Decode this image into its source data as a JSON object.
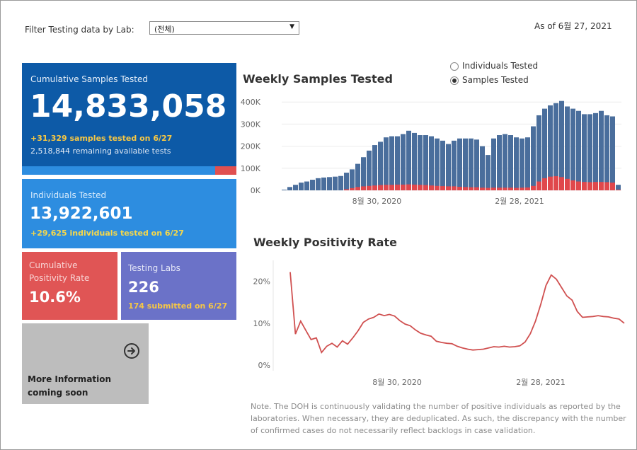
{
  "filter": {
    "label": "Filter Testing data by Lab:",
    "value": "(전체)"
  },
  "as_of": "As of 6월 27, 2021",
  "cumulative": {
    "title": "Cumulative Samples Tested",
    "value": "14,833,058",
    "added": "+31,329 samples tested on 6/27",
    "remaining": "2,518,844 remaining available tests",
    "used_fraction": 0.9
  },
  "individuals": {
    "title": "Individuals Tested",
    "value": "13,922,601",
    "added": "+29,625  individuals  tested on 6/27"
  },
  "positivity": {
    "title": "Cumulative Positivity Rate",
    "value": "10.6%"
  },
  "labs": {
    "title": "Testing Labs",
    "value": "226",
    "submitted": "174 submitted on 6/27"
  },
  "more_info": {
    "text": "More Information coming soon",
    "icon": "arrow-circle-right-icon"
  },
  "toggle": {
    "options": [
      "Individuals Tested",
      "Samples Tested"
    ],
    "selected": "Samples Tested"
  },
  "colors": {
    "blue": "#4a6e9c",
    "red": "#e0474c",
    "line": "#d05050"
  },
  "chart_data": [
    {
      "type": "bar",
      "title": "Weekly Samples Tested",
      "ylim": [
        0,
        420000
      ],
      "y_ticks": [
        "400K",
        "300K",
        "200K",
        "100K",
        "0K"
      ],
      "x_ticks": [
        "8월 30, 2020",
        "2월 28, 2021"
      ],
      "series": [
        {
          "color": "#4a6e9c",
          "values": [
            3000,
            15000,
            25000,
            35000,
            40000,
            48000,
            55000,
            58000,
            60000,
            62000,
            65000,
            80000,
            95000,
            120000,
            150000,
            180000,
            205000,
            220000,
            240000,
            245000,
            245000,
            255000,
            270000,
            260000,
            250000,
            250000,
            245000,
            235000,
            225000,
            210000,
            225000,
            235000,
            235000,
            235000,
            230000,
            200000,
            160000,
            235000,
            250000,
            255000,
            250000,
            240000,
            235000,
            240000,
            290000,
            340000,
            370000,
            385000,
            395000,
            405000,
            380000,
            370000,
            360000,
            345000,
            345000,
            350000,
            360000,
            340000,
            335000,
            25000
          ]
        },
        {
          "color": "#e0474c",
          "values": [
            0,
            0,
            0,
            0,
            0,
            0,
            0,
            0,
            0,
            0,
            0,
            5000,
            10000,
            15000,
            18000,
            20000,
            22000,
            24000,
            25000,
            25000,
            26000,
            26000,
            27000,
            26000,
            25000,
            24000,
            22000,
            20000,
            19000,
            18000,
            18000,
            16000,
            15000,
            14000,
            14000,
            12000,
            11000,
            12000,
            12000,
            12000,
            12000,
            11000,
            12000,
            13000,
            20000,
            40000,
            55000,
            62000,
            64000,
            60000,
            52000,
            45000,
            40000,
            38000,
            37000,
            38000,
            38000,
            37000,
            35000,
            3000
          ]
        }
      ]
    },
    {
      "type": "line",
      "title": "Weekly Positivity Rate",
      "ylim": [
        0,
        25
      ],
      "y_ticks": [
        "20%",
        "10%",
        "0%"
      ],
      "x_ticks": [
        "8월 30, 2020",
        "2월 28, 2021"
      ],
      "series": [
        {
          "color": "#d05050",
          "values": [
            22.2,
            7.4,
            10.5,
            8.3,
            6.1,
            6.5,
            3.0,
            4.5,
            5.2,
            4.3,
            5.8,
            5.0,
            6.5,
            8.2,
            10.2,
            11.0,
            11.4,
            12.2,
            11.8,
            12.1,
            11.7,
            10.6,
            9.8,
            9.4,
            8.4,
            7.6,
            7.2,
            6.9,
            5.7,
            5.4,
            5.2,
            5.1,
            4.5,
            4.1,
            3.8,
            3.6,
            3.7,
            3.8,
            4.1,
            4.4,
            4.3,
            4.5,
            4.3,
            4.4,
            4.6,
            5.5,
            7.5,
            10.5,
            14.5,
            19.0,
            21.5,
            20.5,
            18.5,
            16.5,
            15.5,
            12.8,
            11.4,
            11.5,
            11.6,
            11.8,
            11.6,
            11.5,
            11.2,
            11.0,
            10.0
          ]
        }
      ]
    }
  ],
  "note": "Note. The DOH is continuously validating the number of positive individuals as reported by the laboratories. When necessary, they are deduplicated. As such, the discrepancy with the number of confirmed cases do not necessarily reflect backlogs in case validation."
}
